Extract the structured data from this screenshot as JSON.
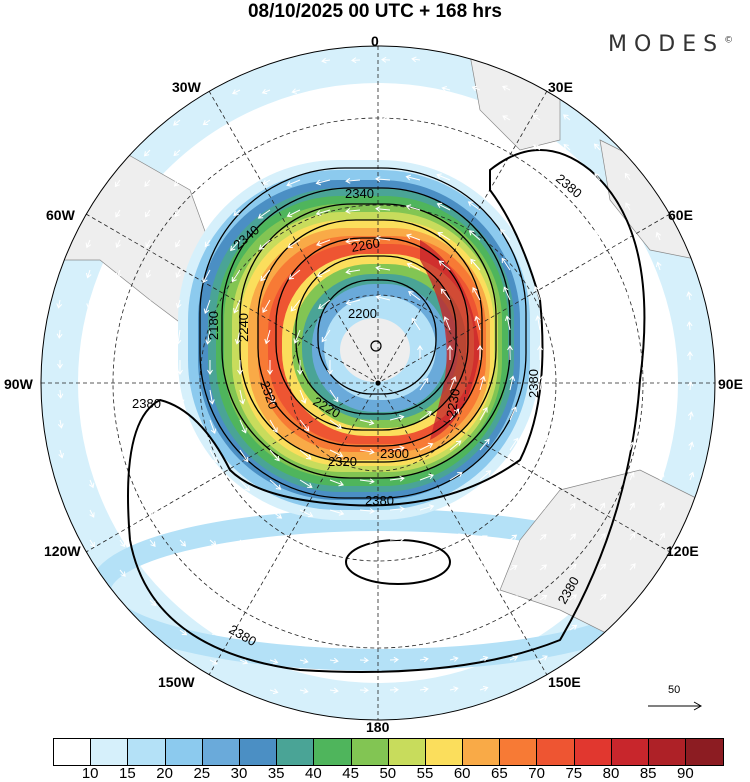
{
  "title": "08/10/2025  00 UTC  + 168 hrs",
  "logo": {
    "text": "MODES",
    "mark": "©"
  },
  "longitude_labels": {
    "n": "0",
    "e30": "30E",
    "e60": "60E",
    "e90": "90E",
    "e120": "120E",
    "e150": "150E",
    "s": "180",
    "w150": "150W",
    "w120": "120W",
    "w90": "90W",
    "w60": "60W",
    "w30": "30W"
  },
  "contour_labels": [
    "2340",
    "2260",
    "2200",
    "2340",
    "2180",
    "2240",
    "2220",
    "2320",
    "2300",
    "2230",
    "2320",
    "2380",
    "2380",
    "2380",
    "2380",
    "2380",
    "2380"
  ],
  "vector_reference": {
    "label": "50"
  },
  "colorbar": {
    "labels": [
      "10",
      "15",
      "20",
      "25",
      "30",
      "35",
      "40",
      "45",
      "50",
      "55",
      "60",
      "65",
      "70",
      "75",
      "80",
      "85",
      "90"
    ],
    "colors": [
      "#ffffff",
      "#d6f0fb",
      "#b4e1f7",
      "#8ccaee",
      "#6aaada",
      "#4b8fc4",
      "#4aa496",
      "#4fb55c",
      "#82c553",
      "#c8dc5c",
      "#fbde5c",
      "#f9aa47",
      "#f77a35",
      "#ee5532",
      "#e1372f",
      "#c8262c",
      "#ae2127",
      "#8c1c22"
    ]
  }
}
